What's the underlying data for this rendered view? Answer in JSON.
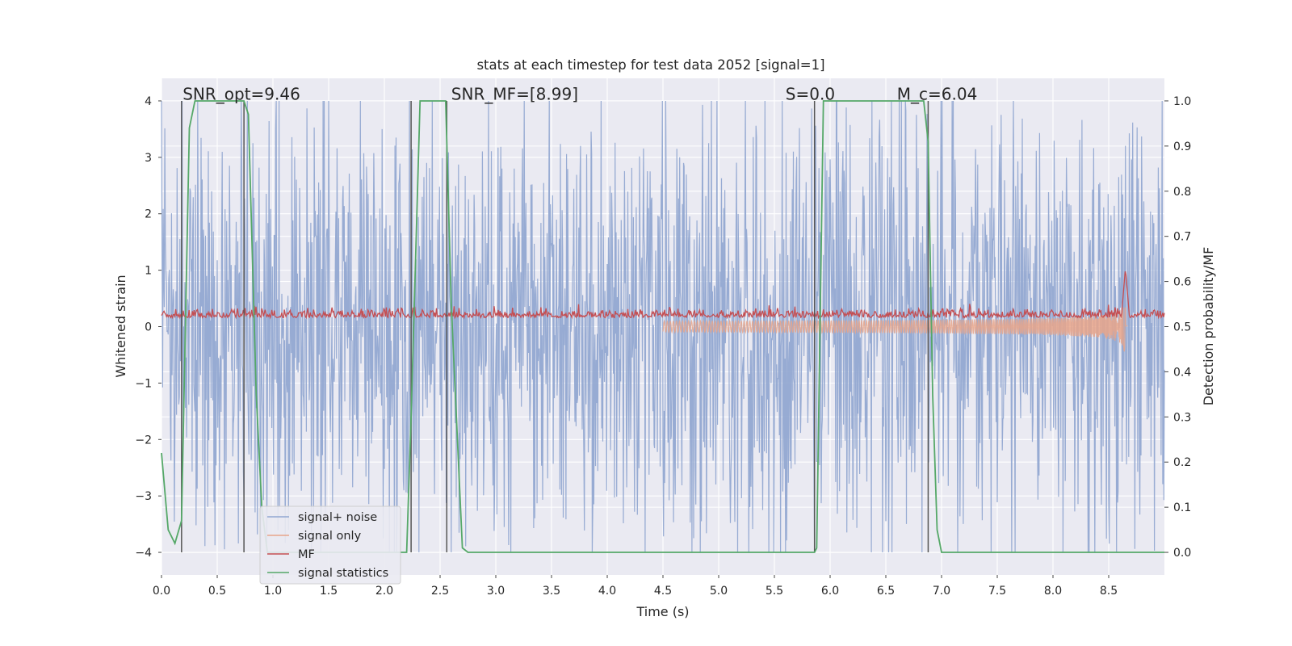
{
  "chart_data": {
    "type": "line",
    "title": "stats at each timestep for test data 2052 [signal=1]",
    "xlabel": "Time (s)",
    "ylabel": "Whitened strain",
    "ylabel_right": "Detection probability/MF",
    "xlim": [
      0.0,
      9.0
    ],
    "ylim": [
      -4.4,
      4.4
    ],
    "ylim_right": [
      -0.05,
      1.05
    ],
    "x_ticks": [
      0.0,
      0.5,
      1.0,
      1.5,
      2.0,
      2.5,
      3.0,
      3.5,
      4.0,
      4.5,
      5.0,
      5.5,
      6.0,
      6.5,
      7.0,
      7.5,
      8.0,
      8.5
    ],
    "y_ticks": [
      -4,
      -3,
      -2,
      -1,
      0,
      1,
      2,
      3,
      4
    ],
    "y_right_ticks": [
      0.0,
      0.1,
      0.2,
      0.3,
      0.4,
      0.5,
      0.6,
      0.7,
      0.8,
      0.9,
      1.0
    ],
    "x_tick_labels": [
      "0.0",
      "0.5",
      "1.0",
      "1.5",
      "2.0",
      "2.5",
      "3.0",
      "3.5",
      "4.0",
      "4.5",
      "5.0",
      "5.5",
      "6.0",
      "6.5",
      "7.0",
      "7.5",
      "8.0",
      "8.5"
    ],
    "y_tick_labels": [
      "−4",
      "−3",
      "−2",
      "−1",
      "0",
      "1",
      "2",
      "3",
      "4"
    ],
    "y_right_tick_labels": [
      "0.0",
      "0.1",
      "0.2",
      "0.3",
      "0.4",
      "0.5",
      "0.6",
      "0.7",
      "0.8",
      "0.9",
      "1.0"
    ],
    "grid": true,
    "legend_position": "lower-left",
    "annotations": [
      {
        "text": "SNR_opt=9.46",
        "x": 0.19,
        "y": 4.05
      },
      {
        "text": "SNR_MF=[8.99]",
        "x": 2.6,
        "y": 4.05
      },
      {
        "text": "S=0.0",
        "x": 5.6,
        "y": 4.05
      },
      {
        "text": "M_c=6.04",
        "x": 6.6,
        "y": 4.05
      }
    ],
    "vertical_lines": [
      0.18,
      0.74,
      2.24,
      2.56,
      5.86,
      6.88
    ],
    "colors": {
      "signal_noise": "#92a8d1",
      "signal_only": "#e8a489",
      "mf": "#c44e52",
      "signal_statistics": "#55a868",
      "vline": "#555555",
      "plot_bg": "#eaeaf2",
      "grid": "#ffffff"
    },
    "series": [
      {
        "name": "signal+ noise",
        "axis": "left",
        "kind": "noise",
        "range": [
          -4.0,
          4.0
        ],
        "typical_amplitude": 2.0
      },
      {
        "name": "signal only",
        "axis": "left",
        "kind": "chirp",
        "start_time": 4.5,
        "merger_time": 8.65,
        "peak_amplitude": 1.0
      },
      {
        "name": "MF",
        "axis": "right",
        "kind": "noise",
        "baseline": 0.52,
        "peak": {
          "x": 8.65,
          "y": 0.63
        }
      },
      {
        "name": "signal statistics",
        "axis": "right",
        "x": [
          0.0,
          0.06,
          0.12,
          0.18,
          0.25,
          0.3,
          0.74,
          0.78,
          0.85,
          0.9,
          0.95,
          2.2,
          2.24,
          2.32,
          2.55,
          2.6,
          2.7,
          2.75,
          5.86,
          5.88,
          5.94,
          6.84,
          6.88,
          6.92,
          6.96,
          7.0,
          7.05,
          9.0
        ],
        "y": [
          0.22,
          0.05,
          0.02,
          0.07,
          0.94,
          1.0,
          1.0,
          0.97,
          0.35,
          0.1,
          0.0,
          0.0,
          0.3,
          1.0,
          1.0,
          0.55,
          0.01,
          0.0,
          0.0,
          0.01,
          1.0,
          1.0,
          0.91,
          0.35,
          0.05,
          0.0,
          0.0,
          0.0
        ]
      }
    ],
    "legend": [
      "signal+ noise",
      "signal only",
      "MF",
      "signal statistics"
    ]
  }
}
